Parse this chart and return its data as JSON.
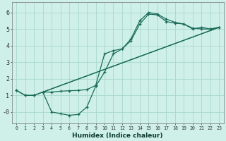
{
  "bg_color": "#cef0e8",
  "grid_color": "#a8d8cc",
  "line_color": "#1a6b5a",
  "xlabel": "Humidex (Indice chaleur)",
  "xlim": [
    -0.5,
    23.5
  ],
  "ylim": [
    -0.7,
    6.6
  ],
  "xticks": [
    0,
    1,
    2,
    3,
    4,
    5,
    6,
    7,
    8,
    9,
    10,
    11,
    12,
    13,
    14,
    15,
    16,
    17,
    18,
    19,
    20,
    21,
    22,
    23
  ],
  "yticks": [
    0,
    1,
    2,
    3,
    4,
    5,
    6
  ],
  "ytick_labels": [
    "-0",
    "1",
    "2",
    "3",
    "4",
    "5",
    "6"
  ],
  "line1_x": [
    0,
    1,
    2,
    3,
    4,
    5,
    6,
    7,
    8,
    9,
    10,
    11,
    12,
    13,
    14,
    15,
    16,
    17,
    18,
    19,
    20,
    21,
    22,
    23
  ],
  "line1_y": [
    1.3,
    1.0,
    1.0,
    1.2,
    0.0,
    -0.1,
    -0.2,
    -0.15,
    0.3,
    1.55,
    2.4,
    3.5,
    3.8,
    4.4,
    5.5,
    6.0,
    5.9,
    5.6,
    5.4,
    5.3,
    5.0,
    5.1,
    5.0,
    5.1
  ],
  "line2_x": [
    0,
    1,
    2,
    3,
    4,
    5,
    6,
    7,
    8,
    9,
    10,
    11,
    12,
    13,
    14,
    15,
    16,
    17,
    18,
    19,
    20,
    21,
    22,
    23
  ],
  "line2_y": [
    1.3,
    1.0,
    1.0,
    1.2,
    1.2,
    1.25,
    1.28,
    1.3,
    1.35,
    1.6,
    3.5,
    3.7,
    3.8,
    4.3,
    5.3,
    5.9,
    5.85,
    5.45,
    5.35,
    5.3,
    5.05,
    5.0,
    5.0,
    5.1
  ],
  "line3_x": [
    3,
    23
  ],
  "line3_y": [
    1.2,
    5.1
  ],
  "line4_x": [
    3,
    23
  ],
  "line4_y": [
    1.2,
    5.1
  ]
}
